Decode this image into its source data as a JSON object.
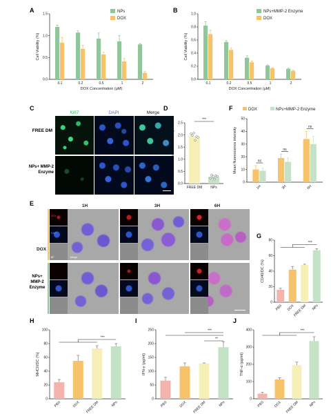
{
  "panels": {
    "A": "A",
    "B": "B",
    "C": "C",
    "D": "D",
    "E": "E",
    "F": "F",
    "G": "G",
    "H": "H",
    "I": "I",
    "J": "J"
  },
  "colors": {
    "green": "#8fc79a",
    "yellow": "#f7c36a",
    "pink": "#f4b4ad",
    "light_yellow": "#f6f0b8",
    "light_green": "#c4e3c6"
  },
  "panelC": {
    "col_labels": [
      "Ki67",
      "DAPI",
      "Merge"
    ],
    "row_labels": [
      "FREE DM",
      "NPs+ MMP-2 Enzyme"
    ]
  },
  "panelE": {
    "col_labels": [
      "1H",
      "3H",
      "6H"
    ],
    "row_labels": [
      "DOX",
      "NPs+ MMP-2 Enzyme"
    ],
    "inset_labels": [
      "DOX",
      "DAPI",
      "BF",
      "Merge"
    ]
  },
  "chart_data": [
    {
      "id": "A",
      "type": "bar",
      "xlabel": "DOX Concentration (μM)",
      "ylabel": "Cell Viability (%)",
      "ylim": [
        0,
        1.5
      ],
      "yticks": [
        "0.0",
        "0.5",
        "1.0",
        "1.5"
      ],
      "categories": [
        "0.1",
        "0.2",
        "0.5",
        "1",
        "2"
      ],
      "series": [
        {
          "name": "NPs",
          "values": [
            1.2,
            1.07,
            0.93,
            0.87,
            0.8
          ],
          "errors": [
            0.04,
            0.04,
            0.13,
            0.13,
            0.02
          ]
        },
        {
          "name": "DOX",
          "values": [
            0.84,
            0.7,
            0.57,
            0.41,
            0.15
          ],
          "errors": [
            0.12,
            0.08,
            0.05,
            0.07,
            0.03
          ]
        }
      ]
    },
    {
      "id": "B",
      "type": "bar",
      "xlabel": "DOX Concentration (μM)",
      "ylabel": "Cell Viability (%)",
      "ylim": [
        0,
        1.0
      ],
      "yticks": [
        "0.0",
        "0.2",
        "0.4",
        "0.6",
        "0.8",
        "1.0"
      ],
      "categories": [
        "0.1",
        "0.2",
        "0.5",
        "1",
        "2"
      ],
      "series": [
        {
          "name": "NPs+MMP-2 Enzyme",
          "values": [
            0.82,
            0.57,
            0.33,
            0.21,
            0.16
          ],
          "errors": [
            0.06,
            0.02,
            0.03,
            0.01,
            0.01
          ]
        },
        {
          "name": "DOX",
          "values": [
            0.69,
            0.45,
            0.26,
            0.17,
            0.13
          ],
          "errors": [
            0.06,
            0.03,
            0.02,
            0.01,
            0.01
          ]
        }
      ]
    },
    {
      "id": "D",
      "type": "bar",
      "ylabel": "Mean fluorescence intensity",
      "ylim": [
        0,
        2.5
      ],
      "yticks": [
        "0.0",
        "0.5",
        "1.0",
        "1.5",
        "2.0",
        "2.5"
      ],
      "categories": [
        "FREE DM",
        "NPs"
      ],
      "values": [
        1.95,
        0.28
      ],
      "points": [
        [
          2.05,
          1.98,
          2.08,
          1.78,
          1.93,
          1.9
        ],
        [
          0.22,
          0.35,
          0.28,
          0.18,
          0.32,
          0.3
        ]
      ],
      "significance": "***"
    },
    {
      "id": "F",
      "type": "bar",
      "ylabel": "Mean fluorescence intensity",
      "ylim": [
        0,
        50
      ],
      "yticks": [
        "0",
        "10",
        "20",
        "30",
        "40",
        "50"
      ],
      "categories": [
        "1H",
        "3H",
        "6H"
      ],
      "series": [
        {
          "name": "DOX",
          "values": [
            10,
            19,
            34
          ],
          "errors": [
            3,
            3,
            6
          ]
        },
        {
          "name": "NPs+MMP-2 Enzyme",
          "values": [
            9,
            16,
            30
          ],
          "errors": [
            2,
            3,
            6
          ]
        }
      ],
      "significance": [
        "ns",
        "ns",
        "ns"
      ]
    },
    {
      "id": "G",
      "type": "bar",
      "ylabel": "CD40/DC (%)",
      "ylim": [
        0,
        80
      ],
      "yticks": [
        "0",
        "20",
        "40",
        "60",
        "80"
      ],
      "categories": [
        "PBS",
        "DOX",
        "FREE DM",
        "NPs"
      ],
      "values": [
        16,
        42,
        48,
        67
      ],
      "errors": [
        2,
        4,
        1,
        2
      ],
      "significance": "***"
    },
    {
      "id": "H",
      "type": "bar",
      "ylabel": "MHCII/DC (%)",
      "ylim": [
        0,
        100
      ],
      "yticks": [
        "0",
        "20",
        "40",
        "60",
        "80",
        "100"
      ],
      "categories": [
        "PBS",
        "DOX",
        "FREE DM",
        "NPs"
      ],
      "values": [
        24,
        55,
        73,
        76
      ],
      "errors": [
        4,
        8,
        4,
        4
      ],
      "significance": "***"
    },
    {
      "id": "I",
      "type": "bar",
      "ylabel": "IFN-γ (pg/ml)",
      "ylim": [
        0,
        250
      ],
      "yticks": [
        "0",
        "50",
        "100",
        "150",
        "200",
        "250"
      ],
      "categories": [
        "PBS",
        "DOX",
        "FREE DM",
        "NPs"
      ],
      "values": [
        66,
        118,
        128,
        187
      ],
      "errors": [
        12,
        12,
        2,
        20
      ],
      "significance": [
        "***",
        "**"
      ]
    },
    {
      "id": "J",
      "type": "bar",
      "ylabel": "TNF-α (pg/ml)",
      "ylim": [
        0,
        400
      ],
      "yticks": [
        "0",
        "100",
        "200",
        "300",
        "400"
      ],
      "categories": [
        "PBS",
        "DOX",
        "FREE DM",
        "NPs"
      ],
      "values": [
        30,
        112,
        195,
        335
      ],
      "errors": [
        8,
        10,
        18,
        25
      ],
      "significance": "***"
    }
  ]
}
